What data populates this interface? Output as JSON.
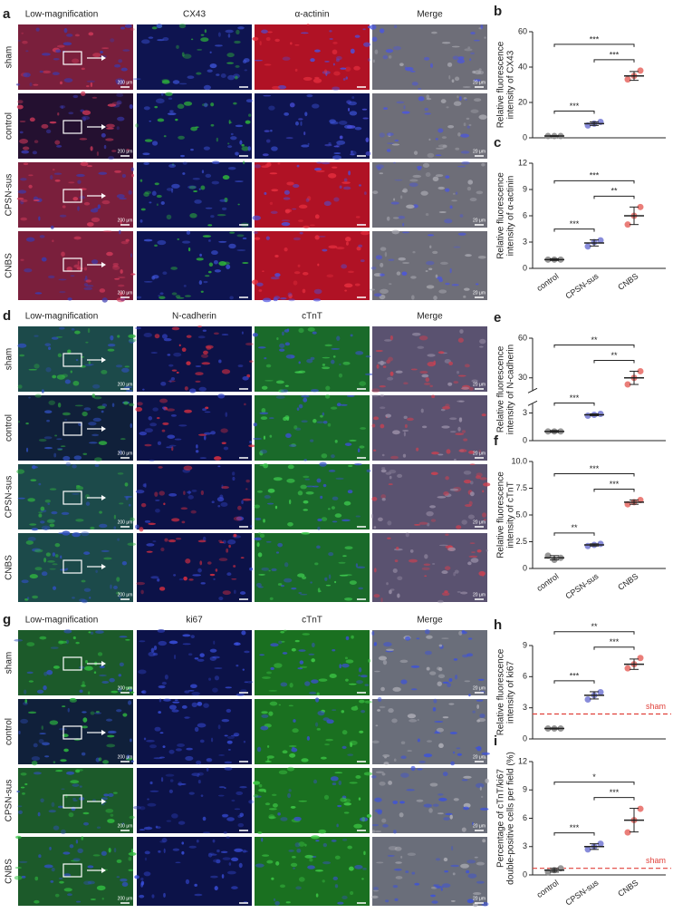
{
  "figure": {
    "panels": [
      {
        "letter": "a",
        "columns": [
          "Low-magnification",
          "CX43",
          "α-actinin",
          "Merge"
        ],
        "rows": [
          "sham",
          "control",
          "CPSN-sus",
          "CNBS"
        ]
      },
      {
        "letter": "d",
        "columns": [
          "Low-magnification",
          "N-cadherin",
          "cTnT",
          "Merge"
        ],
        "rows": [
          "sham",
          "control",
          "CPSN-sus",
          "CNBS"
        ]
      },
      {
        "letter": "g",
        "columns": [
          "Low-magnification",
          "ki67",
          "cTnT",
          "Merge"
        ],
        "rows": [
          "sham",
          "control",
          "CPSN-sus",
          "CNBS"
        ]
      }
    ],
    "scale_bars": [
      "200 μm",
      "20 μm"
    ]
  },
  "chart_data": [
    {
      "type": "dot",
      "label": "b",
      "ylabel": [
        "Relative fluorescence",
        "intensity of CX43"
      ],
      "ylim": [
        0,
        60
      ],
      "yticks": [
        0,
        20,
        40,
        60
      ],
      "series": [
        {
          "color": "#8c8c8c",
          "values": [
            1,
            1,
            1
          ],
          "mean": 1,
          "sd": 0.2
        },
        {
          "color": "#7b7fd6",
          "values": [
            7,
            8,
            9
          ],
          "mean": 8,
          "sd": 1
        },
        {
          "color": "#e8706a",
          "values": [
            33,
            35,
            38
          ],
          "mean": 35,
          "sd": 2.5
        }
      ],
      "significance": [
        "***",
        "***",
        "***"
      ]
    },
    {
      "type": "dot",
      "label": "c",
      "ylabel": [
        "Relative fluorescence",
        "intensity of α-actinin"
      ],
      "ylim": [
        0,
        12
      ],
      "yticks": [
        0,
        3,
        6,
        9,
        12
      ],
      "categories": [
        "control",
        "CPSN-sus",
        "CNBS"
      ],
      "series": [
        {
          "color": "#8c8c8c",
          "values": [
            1,
            1,
            1
          ],
          "mean": 1,
          "sd": 0.1
        },
        {
          "color": "#7b7fd6",
          "values": [
            2.5,
            3,
            3.2
          ],
          "mean": 2.9,
          "sd": 0.35
        },
        {
          "color": "#e8706a",
          "values": [
            5,
            6,
            7
          ],
          "mean": 6,
          "sd": 1
        }
      ],
      "significance": [
        "***",
        "**",
        "***"
      ]
    },
    {
      "type": "dot",
      "label": "e",
      "ylabel": [
        "Relative fluorescence",
        "intensity of N-cadherin"
      ],
      "ylim": [
        0,
        60
      ],
      "ybreak": [
        4,
        20
      ],
      "yticks": [
        0,
        3,
        30,
        60
      ],
      "series": [
        {
          "color": "#8c8c8c",
          "values": [
            1,
            1,
            1
          ],
          "mean": 1,
          "sd": 0.1
        },
        {
          "color": "#7b7fd6",
          "values": [
            2.7,
            2.8,
            2.9
          ],
          "mean": 2.8,
          "sd": 0.1
        },
        {
          "color": "#e8706a",
          "values": [
            25,
            30,
            35
          ],
          "mean": 30,
          "sd": 5
        }
      ],
      "significance": [
        "***",
        "**",
        "**"
      ]
    },
    {
      "type": "dot",
      "label": "f",
      "ylabel": [
        "Relative fluorescence",
        "intensity of cTnT"
      ],
      "ylim": [
        0,
        10
      ],
      "yticks": [
        0,
        2.5,
        {
          "value": 5,
          "label": "5.0"
        },
        7.5,
        {
          "value": 10,
          "label": "10.0"
        }
      ],
      "categories": [
        "control",
        "CPSN-sus",
        "CNBS"
      ],
      "series": [
        {
          "color": "#8c8c8c",
          "values": [
            1.2,
            0.8,
            1
          ],
          "mean": 1,
          "sd": 0.2
        },
        {
          "color": "#7b7fd6",
          "values": [
            2.1,
            2.2,
            2.3
          ],
          "mean": 2.2,
          "sd": 0.1
        },
        {
          "color": "#e8706a",
          "values": [
            6,
            6.2,
            6.4
          ],
          "mean": 6.2,
          "sd": 0.2
        }
      ],
      "significance": [
        "**",
        "***",
        "***"
      ]
    },
    {
      "type": "dot",
      "label": "h",
      "ylabel": [
        "Relative fluorescence",
        "intensity of ki67"
      ],
      "ylim": [
        0,
        9
      ],
      "yticks": [
        0,
        3,
        6,
        9
      ],
      "reference": {
        "value": 2.4,
        "label": "sham"
      },
      "series": [
        {
          "color": "#8c8c8c",
          "values": [
            1,
            1,
            1
          ],
          "mean": 1,
          "sd": 0.05
        },
        {
          "color": "#7b7fd6",
          "values": [
            3.8,
            4.2,
            4.5
          ],
          "mean": 4.2,
          "sd": 0.35
        },
        {
          "color": "#e8706a",
          "values": [
            6.8,
            7.2,
            7.8
          ],
          "mean": 7.2,
          "sd": 0.5
        }
      ],
      "significance": [
        "***",
        "***",
        "**"
      ]
    },
    {
      "type": "dot",
      "label": "i",
      "ylabel": [
        "Percentage of cTnT/ki67",
        "double-positive cells per field (%)"
      ],
      "ylim": [
        0,
        12
      ],
      "yticks": [
        0,
        3,
        6,
        9,
        12
      ],
      "categories": [
        "control",
        "CPSN-sus",
        "CNBS"
      ],
      "reference": {
        "value": 0.7,
        "label": "sham"
      },
      "series": [
        {
          "color": "#8c8c8c",
          "values": [
            0.3,
            0.5,
            0.7
          ],
          "mean": 0.5,
          "sd": 0.2
        },
        {
          "color": "#7b7fd6",
          "values": [
            2.7,
            3,
            3.3
          ],
          "mean": 3,
          "sd": 0.3
        },
        {
          "color": "#e8706a",
          "values": [
            4.5,
            5.8,
            7
          ],
          "mean": 5.8,
          "sd": 1.25
        }
      ],
      "significance": [
        "***",
        "***",
        "*"
      ]
    }
  ]
}
